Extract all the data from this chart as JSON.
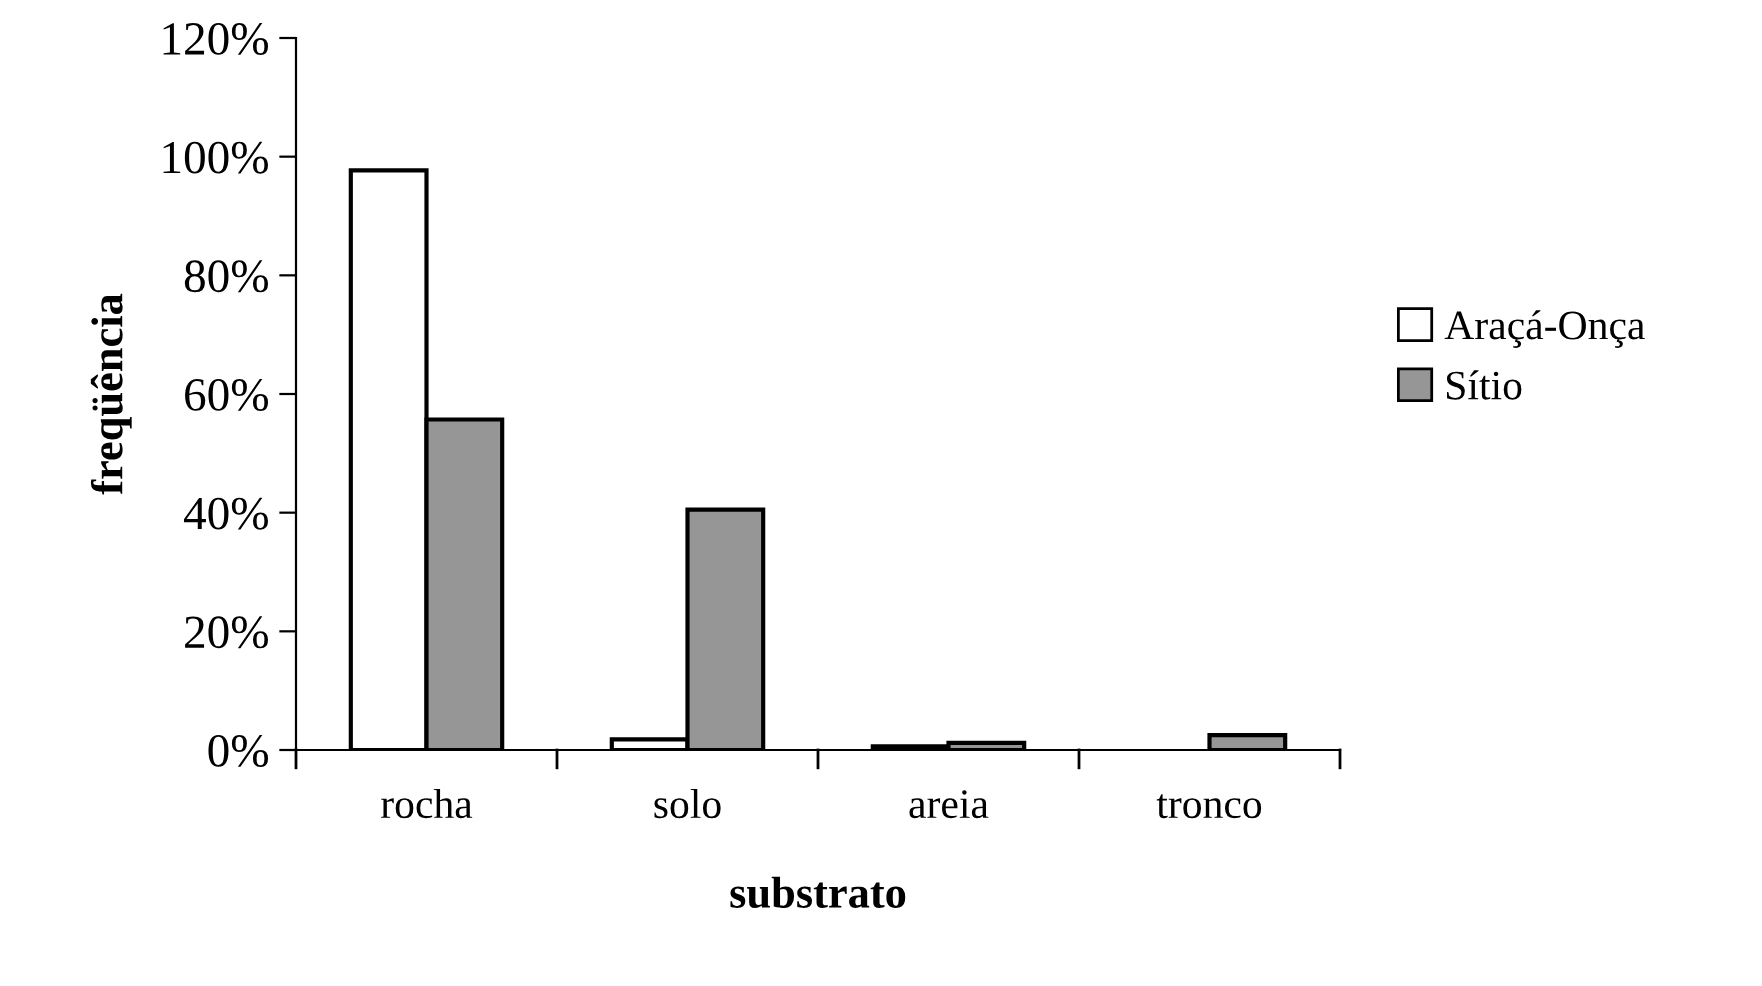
{
  "chart_data": {
    "type": "bar",
    "xlabel": "substrato",
    "ylabel": "freqüência",
    "categories": [
      "rocha",
      "solo",
      "areia",
      "tronco"
    ],
    "series": [
      {
        "name": "Araçá-Onça",
        "color": "#ffffff",
        "values": [
          97.7,
          1.8,
          0.6,
          null
        ]
      },
      {
        "name": "Sítio",
        "color": "#969696",
        "values": [
          55.7,
          40.5,
          1.2,
          2.5
        ]
      }
    ],
    "ylim": [
      0,
      120
    ],
    "yticks": [
      {
        "value": 0,
        "label": "0%"
      },
      {
        "value": 20,
        "label": "20%"
      },
      {
        "value": 40,
        "label": "40%"
      },
      {
        "value": 60,
        "label": "60%"
      },
      {
        "value": 80,
        "label": "80%"
      },
      {
        "value": 100,
        "label": "100%"
      },
      {
        "value": 120,
        "label": "120%"
      }
    ],
    "grid": false,
    "legend": "right"
  }
}
